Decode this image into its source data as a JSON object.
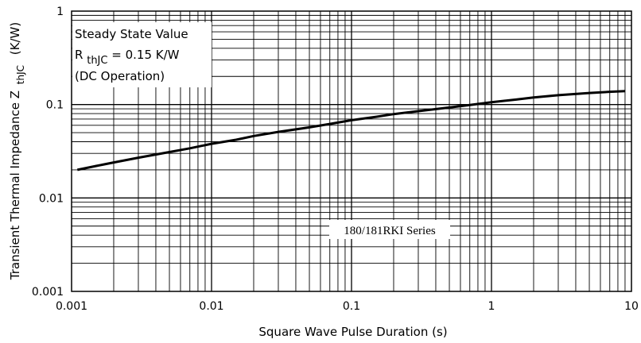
{
  "chart_data": {
    "type": "line",
    "xlabel": "Square Wave Pulse Duration (s)",
    "ylabel_main": "Transient Thermal Impedance Z",
    "ylabel_sub": "thJC",
    "ylabel_unit": "(K/W)",
    "x_scale": "log",
    "y_scale": "log",
    "xlim": [
      0.001,
      10
    ],
    "ylim": [
      0.001,
      1
    ],
    "x_ticks": [
      {
        "value": 0.001,
        "label": "0.001"
      },
      {
        "value": 0.01,
        "label": "0.01"
      },
      {
        "value": 0.1,
        "label": "0.1"
      },
      {
        "value": 1,
        "label": "1"
      },
      {
        "value": 10,
        "label": "10"
      }
    ],
    "y_ticks": [
      {
        "value": 0.001,
        "label": "0.001"
      },
      {
        "value": 0.01,
        "label": "0.01"
      },
      {
        "value": 0.1,
        "label": "0.1"
      },
      {
        "value": 1,
        "label": "1"
      }
    ],
    "grid": true,
    "annotation": {
      "line1": "Steady State Value",
      "line2_main": "R",
      "line2_sub": "thJC",
      "line2_rest": " = 0.15 K/W",
      "line3": "(DC Operation)"
    },
    "series_label": "180/181RKI Series",
    "series": [
      {
        "x": [
          0.0011,
          0.0015,
          0.002,
          0.003,
          0.005,
          0.007,
          0.01,
          0.015,
          0.02,
          0.03,
          0.05,
          0.07,
          0.1,
          0.15,
          0.2,
          0.3,
          0.5,
          0.7,
          1,
          1.5,
          2,
          3,
          5,
          7,
          9
        ],
        "values": [
          0.02,
          0.022,
          0.024,
          0.027,
          0.031,
          0.034,
          0.038,
          0.042,
          0.046,
          0.051,
          0.057,
          0.062,
          0.068,
          0.074,
          0.079,
          0.085,
          0.093,
          0.099,
          0.106,
          0.113,
          0.119,
          0.126,
          0.133,
          0.137,
          0.139
        ],
        "color": "#000000"
      }
    ]
  }
}
